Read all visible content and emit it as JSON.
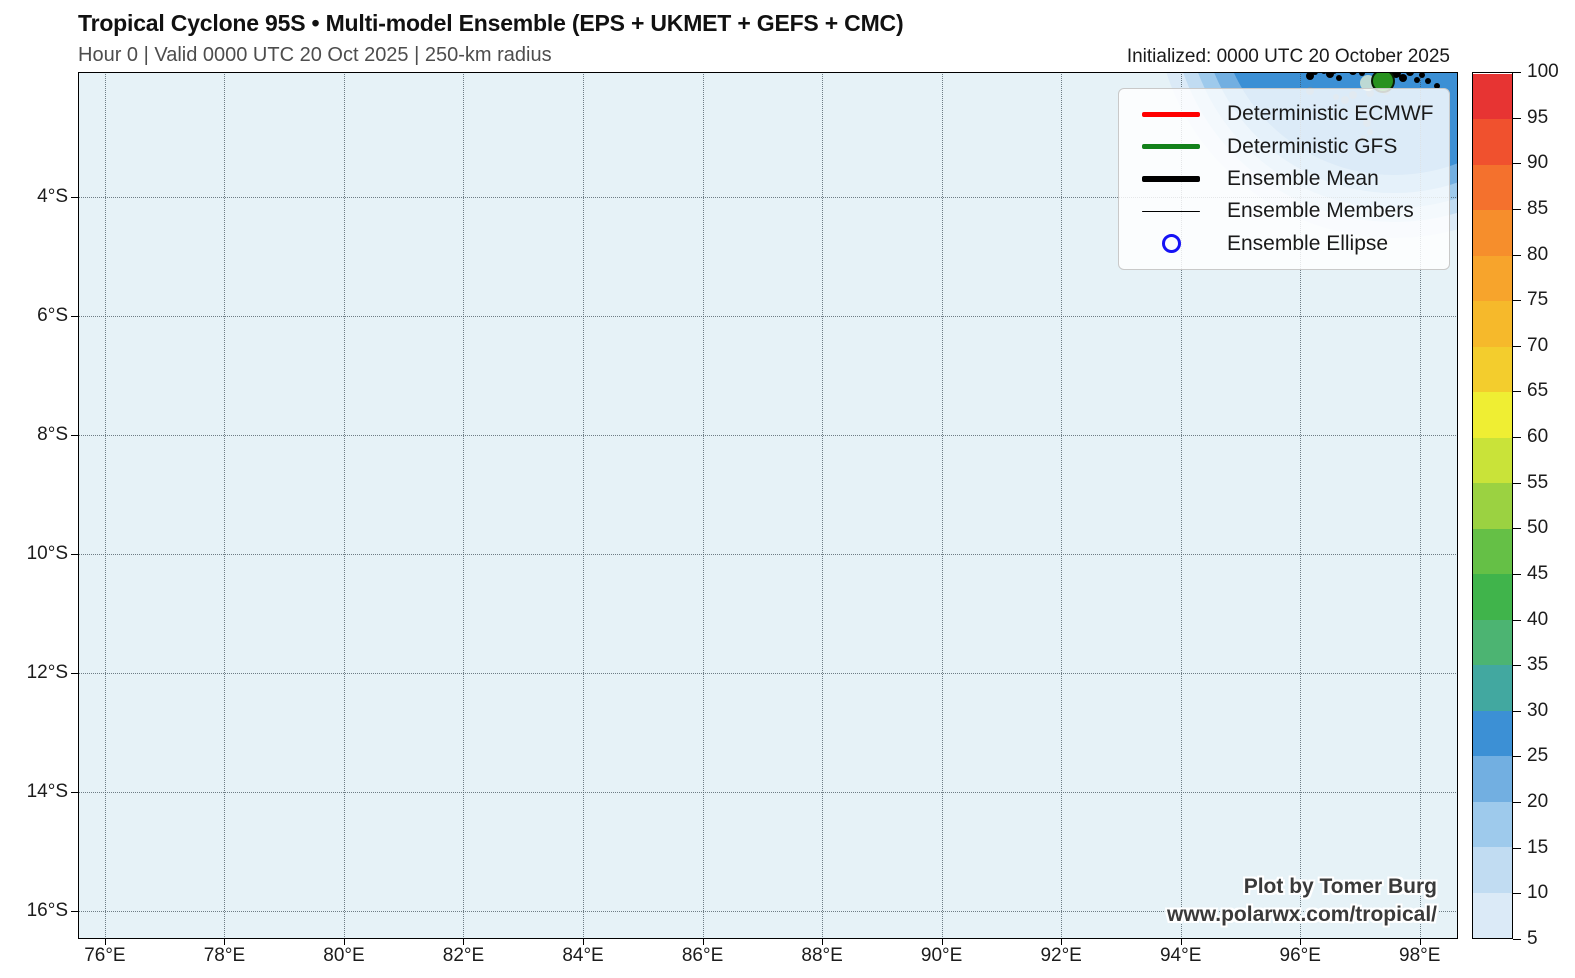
{
  "header": {
    "title": "Tropical Cyclone 95S • Multi-model Ensemble (EPS + UKMET + GEFS + CMC)",
    "subtitle": "Hour 0 | Valid 0000 UTC 20 Oct 2025 | 250-km radius",
    "initialized": "Initialized: 0000 UTC 20 October 2025"
  },
  "watermark": {
    "line1": "Plot by Tomer Burg",
    "line2": "www.polarwx.com/tropical/"
  },
  "legend": {
    "items": [
      {
        "label": "Deterministic ECMWF",
        "swatch": "line",
        "color": "#ff0000",
        "weight": 5
      },
      {
        "label": "Deterministic GFS",
        "swatch": "line",
        "color": "#12811a",
        "weight": 5
      },
      {
        "label": "Ensemble Mean",
        "swatch": "line",
        "color": "#000000",
        "weight": 6
      },
      {
        "label": "Ensemble Members",
        "swatch": "line",
        "color": "#000000",
        "weight": 1
      },
      {
        "label": "Ensemble Ellipse",
        "swatch": "circle",
        "color": "#1512f5",
        "weight": 3.5
      }
    ]
  },
  "chart_data": {
    "type": "scatter",
    "title": "Tropical Cyclone 95S • Multi-model Ensemble (EPS + UKMET + GEFS + CMC)",
    "subtitle": "Hour 0 | Valid 0000 UTC 20 Oct 2025 | 250-km radius",
    "grid": "dotted",
    "legend_position": "upper right",
    "x_axis": {
      "unit": "longitude_east",
      "range_deg_e": [
        75.55,
        98.64
      ],
      "ticks": [
        {
          "value": 76,
          "label": "76°E"
        },
        {
          "value": 78,
          "label": "78°E"
        },
        {
          "value": 80,
          "label": "80°E"
        },
        {
          "value": 82,
          "label": "82°E"
        },
        {
          "value": 84,
          "label": "84°E"
        },
        {
          "value": 86,
          "label": "86°E"
        },
        {
          "value": 88,
          "label": "88°E"
        },
        {
          "value": 90,
          "label": "90°E"
        },
        {
          "value": 92,
          "label": "92°E"
        },
        {
          "value": 94,
          "label": "94°E"
        },
        {
          "value": 96,
          "label": "96°E"
        },
        {
          "value": 98,
          "label": "98°E"
        }
      ]
    },
    "y_axis": {
      "unit": "latitude_south",
      "range_deg_s": [
        1.9,
        16.47
      ],
      "ticks": [
        {
          "value": 4,
          "label": "4°S"
        },
        {
          "value": 6,
          "label": "6°S"
        },
        {
          "value": 8,
          "label": "8°S"
        },
        {
          "value": 10,
          "label": "10°S"
        },
        {
          "value": 12,
          "label": "12°S"
        },
        {
          "value": 14,
          "label": "14°S"
        },
        {
          "value": 16,
          "label": "16°S"
        }
      ]
    },
    "colorbar": {
      "orientation": "vertical",
      "value_min": 5,
      "value_max": 100,
      "tick_step": 5,
      "ticks": [
        5,
        10,
        15,
        20,
        25,
        30,
        35,
        40,
        45,
        50,
        55,
        60,
        65,
        70,
        75,
        80,
        85,
        90,
        95,
        100
      ],
      "segment_colors_low_to_high": [
        "#dbeaf7",
        "#c1dcf2",
        "#9ecaec",
        "#72afe1",
        "#3c90d5",
        "#42a8a0",
        "#4cb472",
        "#40b44b",
        "#65c046",
        "#9bd241",
        "#c9e339",
        "#efee33",
        "#f3cd2d",
        "#f6b92b",
        "#f7a42c",
        "#f68e2c",
        "#f4712d",
        "#f0512e",
        "#e73433"
      ]
    },
    "map_background_color": "#e6f2f7",
    "probability_contours": {
      "center": {
        "lon_e": 97.57,
        "lat_s": 0.69
      },
      "levels_outer_to_inner": [
        {
          "value": 5,
          "radius_deg": 4.0,
          "color": "#dbeaf7"
        },
        {
          "value": 10,
          "radius_deg": 3.73,
          "color": "#c1dcf2"
        },
        {
          "value": 15,
          "radius_deg": 3.49,
          "color": "#9ecaec"
        },
        {
          "value": 20,
          "radius_deg": 3.24,
          "color": "#72afe1"
        },
        {
          "value": 25,
          "radius_deg": 2.94,
          "color": "#3c90d5"
        }
      ]
    },
    "markers": {
      "gfs_marker": {
        "lon_e": 97.39,
        "lat_s": 2.05,
        "radius_px": 12,
        "color": "#28921f"
      },
      "faded_marker": {
        "lon_e": 97.14,
        "lat_s": 2.08,
        "radius_px": 8,
        "color": "#d4e6d4"
      },
      "ensemble_points": [
        [
          96.17,
          1.97,
          4
        ],
        [
          96.25,
          1.9,
          3
        ],
        [
          96.5,
          1.93,
          4
        ],
        [
          96.57,
          1.88,
          3
        ],
        [
          96.65,
          2.0,
          3
        ],
        [
          96.89,
          1.88,
          4
        ],
        [
          97.04,
          1.92,
          3
        ],
        [
          97.5,
          1.87,
          4
        ],
        [
          97.61,
          1.92,
          5
        ],
        [
          97.72,
          2.0,
          4
        ],
        [
          97.84,
          1.9,
          4
        ],
        [
          97.96,
          2.03,
          3
        ],
        [
          98.04,
          1.95,
          3
        ],
        [
          98.14,
          2.05,
          3
        ],
        [
          98.29,
          2.13,
          3
        ],
        [
          96.4,
          1.89,
          3
        ]
      ],
      "faded_points": [
        [
          97.31,
          2.13,
          5
        ],
        [
          97.44,
          2.22,
          4
        ],
        [
          97.17,
          2.25,
          4
        ],
        [
          96.89,
          2.29,
          4
        ],
        [
          96.75,
          2.37,
          4
        ],
        [
          96.6,
          2.32,
          3
        ],
        [
          96.17,
          2.22,
          4
        ],
        [
          96.95,
          2.55,
          3
        ],
        [
          97.12,
          2.76,
          4
        ],
        [
          97.17,
          2.91,
          3
        ],
        [
          97.05,
          3.01,
          3
        ]
      ]
    }
  }
}
